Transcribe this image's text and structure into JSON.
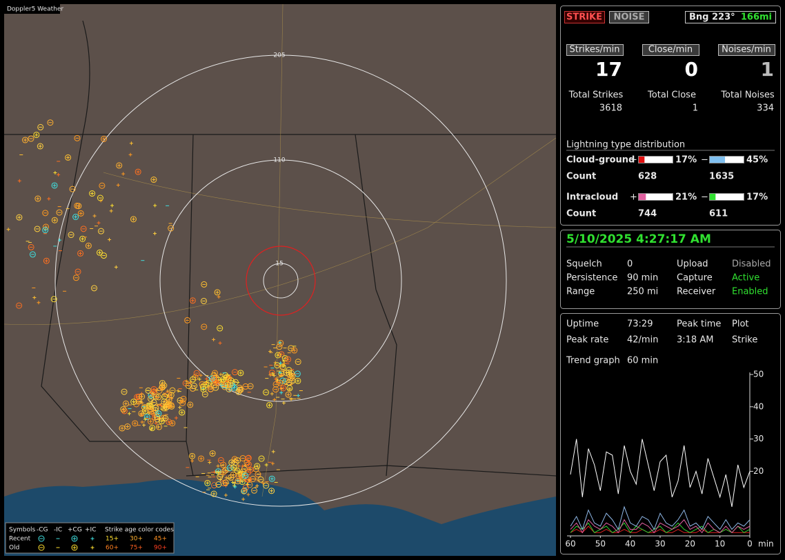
{
  "map": {
    "title": "Doppler5 Weather",
    "range_labels": [
      "205",
      "110",
      "15"
    ],
    "legend": {
      "symbols_label": "Symbols",
      "types": [
        "-CG",
        "-IC",
        "+CG",
        "+IC"
      ],
      "age_label": "Strike age color codes",
      "rows": [
        {
          "label": "Recent",
          "ages": [
            "15+",
            "30+",
            "45+"
          ]
        },
        {
          "label": "Old",
          "ages": [
            "60+",
            "75+",
            "90+"
          ]
        }
      ]
    }
  },
  "header": {
    "strike": "STRIKE",
    "noise": "NOISE",
    "bearing": "Bng 223°",
    "distance": "166mi"
  },
  "stats": [
    {
      "label": "Strikes/min",
      "rate": 17,
      "total_label": "Total Strikes",
      "total": 3618
    },
    {
      "label": "Close/min",
      "rate": 0,
      "total_label": "Total Close",
      "total": 1
    },
    {
      "label": "Noises/min",
      "rate": 1,
      "total_label": "Total Noises",
      "total": 334
    }
  ],
  "distribution": {
    "title": "Lightning type distribution",
    "rows": [
      {
        "label": "Cloud-ground",
        "pos_sign": "+",
        "pos_percent": 17,
        "pos_percent_label": "17%",
        "neg_sign": "−",
        "neg_percent": 45,
        "neg_percent_label": "45%",
        "count_label": "Count",
        "pos_count": 628,
        "neg_count": 1635
      },
      {
        "label": "Intracloud",
        "pos_sign": "+",
        "pos_percent": 21,
        "pos_percent_label": "21%",
        "neg_sign": "−",
        "neg_percent": 17,
        "neg_percent_label": "17%",
        "count_label": "Count",
        "pos_count": 744,
        "neg_count": 611
      }
    ]
  },
  "status": {
    "datetime": "5/10/2025 4:27:17 AM",
    "rows": [
      [
        "Squelch",
        "0",
        "Upload",
        "Disabled"
      ],
      [
        "Persistence",
        "90 min",
        "Capture",
        "Active"
      ],
      [
        "Range",
        "250 mi",
        "Receiver",
        "Enabled"
      ]
    ]
  },
  "uptime": {
    "rows": [
      [
        "Uptime",
        "73:29",
        "Peak time",
        "Plot"
      ],
      [
        "Peak rate",
        "42/min",
        "3:18 AM",
        "Strike"
      ]
    ],
    "trend_label": "Trend graph",
    "trend_window": "60 min"
  },
  "chart_data": {
    "type": "line",
    "x": [
      60,
      58,
      56,
      54,
      52,
      50,
      48,
      46,
      44,
      42,
      40,
      38,
      36,
      34,
      32,
      30,
      28,
      26,
      24,
      22,
      20,
      18,
      16,
      14,
      12,
      10,
      8,
      6,
      4,
      2,
      0
    ],
    "xlim": [
      60,
      0
    ],
    "xticks": [
      60,
      50,
      40,
      30,
      20,
      10,
      0
    ],
    "x_unit": "min",
    "ylim": [
      0,
      50
    ],
    "yticks": [
      50,
      40,
      30,
      20
    ],
    "series": [
      {
        "color": "#ffffff",
        "values": [
          19,
          30,
          12,
          27,
          22,
          14,
          26,
          25,
          13,
          28,
          20,
          16,
          30,
          22,
          14,
          23,
          25,
          12,
          17,
          28,
          15,
          20,
          13,
          24,
          18,
          12,
          19,
          9,
          22,
          15,
          20
        ]
      },
      {
        "color": "#8fb8e8",
        "values": [
          3,
          6,
          2,
          8,
          4,
          3,
          7,
          5,
          2,
          9,
          4,
          3,
          6,
          5,
          2,
          7,
          4,
          3,
          5,
          8,
          3,
          4,
          2,
          6,
          4,
          2,
          5,
          2,
          4,
          3,
          5
        ]
      },
      {
        "color": "#e060a0",
        "values": [
          2,
          4,
          1,
          5,
          3,
          2,
          4,
          3,
          1,
          5,
          2,
          2,
          4,
          3,
          1,
          4,
          3,
          2,
          3,
          5,
          2,
          3,
          1,
          4,
          2,
          1,
          3,
          1,
          3,
          2,
          3
        ]
      },
      {
        "color": "#30d030",
        "values": [
          1,
          3,
          2,
          4,
          1,
          2,
          3,
          1,
          2,
          4,
          1,
          3,
          2,
          1,
          2,
          3,
          1,
          2,
          4,
          2,
          1,
          2,
          3,
          1,
          2,
          1,
          2,
          1,
          3,
          1,
          2
        ]
      },
      {
        "color": "#e02020",
        "values": [
          1,
          2,
          1,
          3,
          1,
          1,
          2,
          1,
          1,
          2,
          1,
          1,
          2,
          1,
          1,
          2,
          1,
          1,
          2,
          1,
          1,
          1,
          2,
          1,
          1,
          1,
          2,
          1,
          1,
          1,
          1
        ]
      }
    ]
  }
}
